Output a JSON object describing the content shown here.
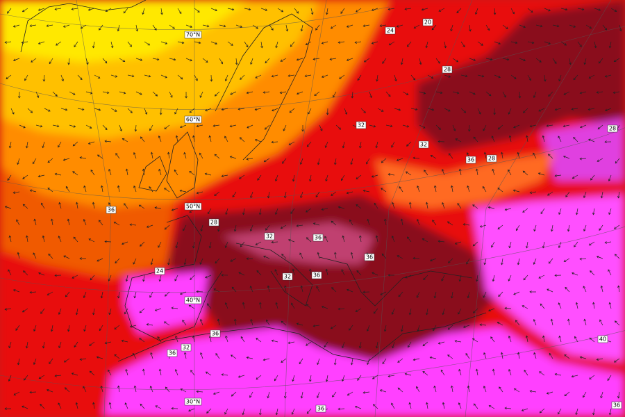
{
  "map": {
    "latitude_labels": [
      "70°N",
      "60°N",
      "50°N",
      "40°N",
      "30°N"
    ],
    "contour_labels": [
      "20",
      "24",
      "28",
      "32",
      "32",
      "36",
      "28",
      "28",
      "36",
      "28",
      "32",
      "36",
      "36",
      "24",
      "32",
      "36",
      "40",
      "36",
      "32",
      "36",
      "36",
      "36"
    ]
  }
}
